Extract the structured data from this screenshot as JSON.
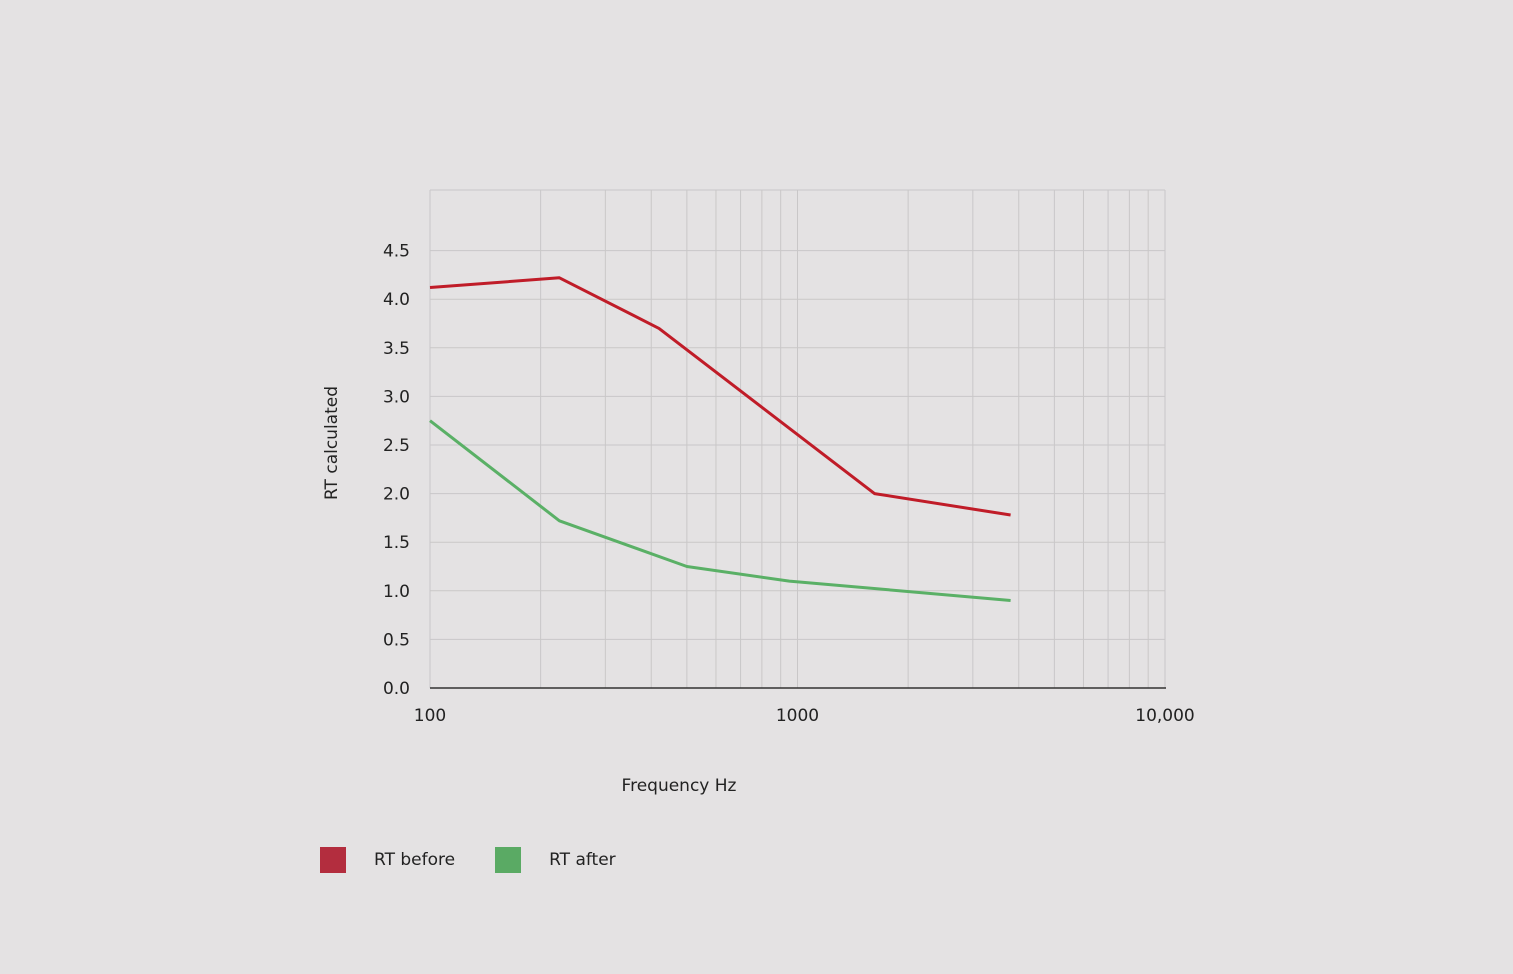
{
  "chart_data": {
    "type": "line",
    "title": "",
    "xlabel": "Frequency Hz",
    "ylabel": "RT calculated",
    "xscale": "log",
    "xlim": [
      100,
      10000
    ],
    "ylim": [
      0,
      5
    ],
    "x_ticks": [
      100,
      1000,
      10000
    ],
    "x_tick_labels": [
      "100",
      "1000",
      "10,000"
    ],
    "y_ticks": [
      0,
      0.5,
      1,
      1.5,
      2,
      2.5,
      3,
      3.5,
      4,
      4.5
    ],
    "y_tick_labels": [
      "0.0",
      "0.5",
      "1.0",
      "1.5",
      "2.0",
      "2.5",
      "3.0",
      "3.5",
      "4.0",
      "4.5"
    ],
    "grid": true,
    "legend_position": "bottom-left",
    "series": [
      {
        "name": "RT before",
        "line_color": "#c01c28",
        "swatch_color": "#b32d3e",
        "x": [
          100,
          225,
          420,
          1620,
          3800
        ],
        "y": [
          4.12,
          4.22,
          3.7,
          2.0,
          1.78
        ]
      },
      {
        "name": "RT after",
        "line_color": "#5ab066",
        "swatch_color": "#5aaa64",
        "x": [
          100,
          225,
          500,
          950,
          3800
        ],
        "y": [
          2.75,
          1.72,
          1.25,
          1.1,
          0.9
        ]
      }
    ]
  }
}
